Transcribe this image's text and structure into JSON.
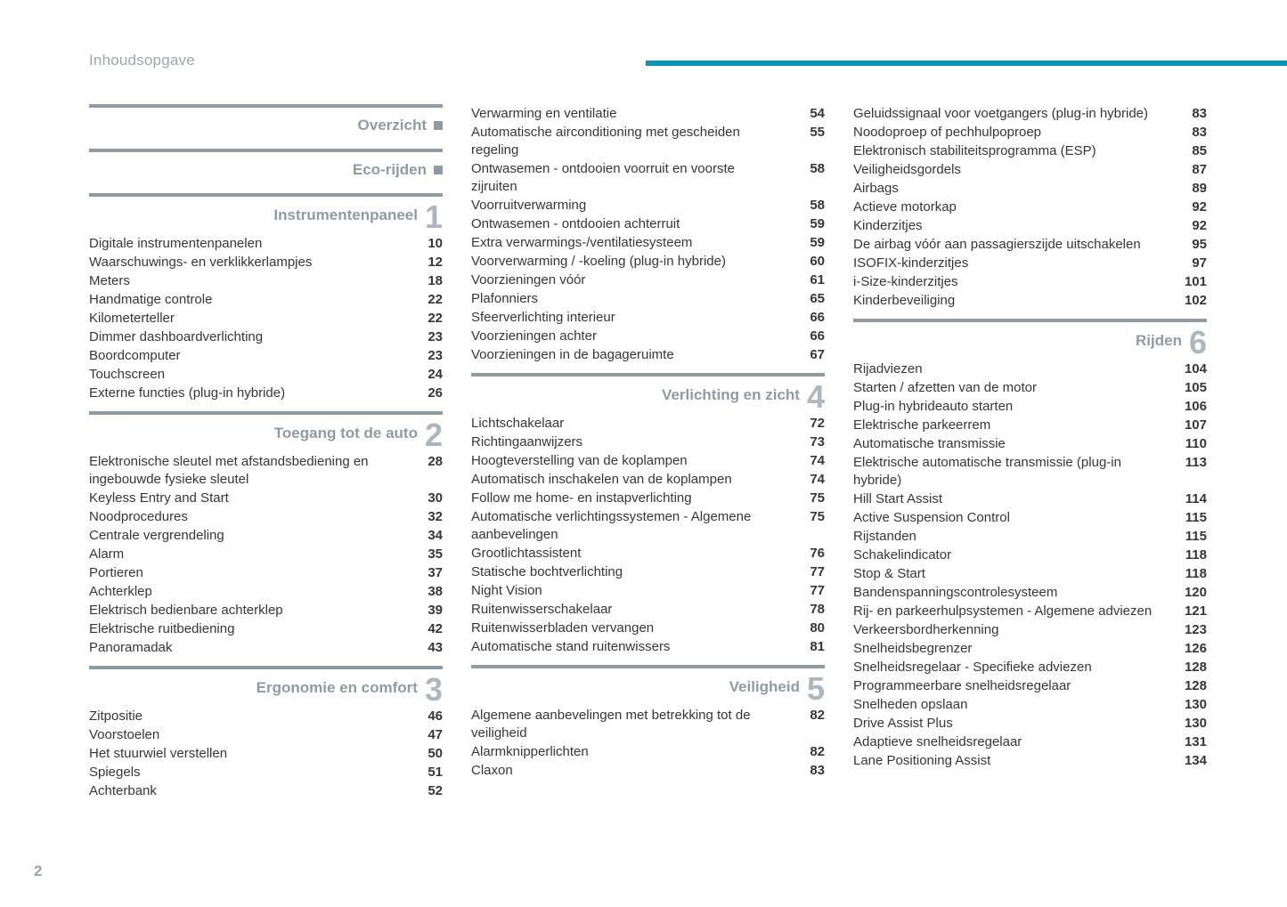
{
  "page": {
    "title": "Inhoudsopgave",
    "number": "2",
    "accent_color": "#0b96b8",
    "rule_color": "#8f9aa3",
    "text_color": "#363636",
    "muted_color": "#9fa5aa",
    "numeral_color": "#aeb6bd"
  },
  "columns": [
    [
      {
        "title": "Overzicht",
        "numeral": "",
        "marker": true,
        "items": []
      },
      {
        "title": "Eco-rijden",
        "numeral": "",
        "marker": true,
        "items": []
      },
      {
        "title": "Instrumentenpaneel",
        "numeral": "1",
        "items": [
          {
            "label": "Digitale instrumentenpanelen",
            "page": "10"
          },
          {
            "label": "Waarschuwings- en verklikkerlampjes",
            "page": "12"
          },
          {
            "label": "Meters",
            "page": "18"
          },
          {
            "label": "Handmatige controle",
            "page": "22"
          },
          {
            "label": "Kilometerteller",
            "page": "22"
          },
          {
            "label": "Dimmer dashboardverlichting",
            "page": "23"
          },
          {
            "label": "Boordcomputer",
            "page": "23"
          },
          {
            "label": "Touchscreen",
            "page": "24"
          },
          {
            "label": "Externe functies (plug-in hybride)",
            "page": "26"
          }
        ]
      },
      {
        "title": "Toegang tot de auto",
        "numeral": "2",
        "items": [
          {
            "label": "Elektronische sleutel met afstandsbediening en ingebouwde fysieke sleutel",
            "page": "28"
          },
          {
            "label": "Keyless Entry and Start",
            "page": "30"
          },
          {
            "label": "Noodprocedures",
            "page": "32"
          },
          {
            "label": "Centrale vergrendeling",
            "page": "34"
          },
          {
            "label": "Alarm",
            "page": "35"
          },
          {
            "label": "Portieren",
            "page": "37"
          },
          {
            "label": "Achterklep",
            "page": "38"
          },
          {
            "label": "Elektrisch bedienbare achterklep",
            "page": "39"
          },
          {
            "label": "Elektrische ruitbediening",
            "page": "42"
          },
          {
            "label": "Panoramadak",
            "page": "43"
          }
        ]
      },
      {
        "title": "Ergonomie en comfort",
        "numeral": "3",
        "items": [
          {
            "label": "Zitpositie",
            "page": "46"
          },
          {
            "label": "Voorstoelen",
            "page": "47"
          },
          {
            "label": "Het stuurwiel verstellen",
            "page": "50"
          },
          {
            "label": "Spiegels",
            "page": "51"
          },
          {
            "label": "Achterbank",
            "page": "52"
          }
        ]
      }
    ],
    [
      {
        "continuation": true,
        "items": [
          {
            "label": "Verwarming en ventilatie",
            "page": "54"
          },
          {
            "label": "Automatische airconditioning met gescheiden regeling",
            "page": "55"
          },
          {
            "label": "Ontwasemen - ontdooien voorruit en voorste zijruiten",
            "page": "58"
          },
          {
            "label": "Voorruitverwarming",
            "page": "58"
          },
          {
            "label": "Ontwasemen - ontdooien achterruit",
            "page": "59"
          },
          {
            "label": "Extra verwarmings-/ventilatiesysteem",
            "page": "59"
          },
          {
            "label": "Voorverwarming / -koeling (plug-in hybride)",
            "page": "60"
          },
          {
            "label": "Voorzieningen vóór",
            "page": "61"
          },
          {
            "label": "Plafonniers",
            "page": "65"
          },
          {
            "label": "Sfeerverlichting interieur",
            "page": "66"
          },
          {
            "label": "Voorzieningen achter",
            "page": "66"
          },
          {
            "label": "Voorzieningen in de bagageruimte",
            "page": "67"
          }
        ]
      },
      {
        "title": "Verlichting en zicht",
        "numeral": "4",
        "items": [
          {
            "label": "Lichtschakelaar",
            "page": "72"
          },
          {
            "label": "Richtingaanwijzers",
            "page": "73"
          },
          {
            "label": "Hoogteverstelling van de koplampen",
            "page": "74"
          },
          {
            "label": "Automatisch inschakelen van de koplampen",
            "page": "74"
          },
          {
            "label": "Follow me home- en instapverlichting",
            "page": "75"
          },
          {
            "label": "Automatische verlichtingssystemen - Algemene aanbevelingen",
            "page": "75"
          },
          {
            "label": "Grootlichtassistent",
            "page": "76"
          },
          {
            "label": "Statische bochtverlichting",
            "page": "77"
          },
          {
            "label": "Night Vision",
            "page": "77"
          },
          {
            "label": "Ruitenwisserschakelaar",
            "page": "78"
          },
          {
            "label": "Ruitenwisserbladen vervangen",
            "page": "80"
          },
          {
            "label": "Automatische stand ruitenwissers",
            "page": "81"
          }
        ]
      },
      {
        "title": "Veiligheid",
        "numeral": "5",
        "items": [
          {
            "label": "Algemene aanbevelingen met betrekking tot de veiligheid",
            "page": "82"
          },
          {
            "label": "Alarmknipperlichten",
            "page": "82"
          },
          {
            "label": "Claxon",
            "page": "83"
          }
        ]
      }
    ],
    [
      {
        "continuation": true,
        "items": [
          {
            "label": "Geluidssignaal voor voetgangers (plug-in hybride)",
            "page": "83"
          },
          {
            "label": "Noodoproep of pechhulpoproep",
            "page": "83"
          },
          {
            "label": "Elektronisch stabiliteitsprogramma (ESP)",
            "page": "85"
          },
          {
            "label": "Veiligheidsgordels",
            "page": "87"
          },
          {
            "label": "Airbags",
            "page": "89"
          },
          {
            "label": "Actieve motorkap",
            "page": "92"
          },
          {
            "label": "Kinderzitjes",
            "page": "92"
          },
          {
            "label": "De airbag vóór aan passagierszijde uitschakelen",
            "page": "95"
          },
          {
            "label": "ISOFIX-kinderzitjes",
            "page": "97"
          },
          {
            "label": "i-Size-kinderzitjes",
            "page": "101"
          },
          {
            "label": "Kinderbeveiliging",
            "page": "102"
          }
        ]
      },
      {
        "title": "Rijden",
        "numeral": "6",
        "items": [
          {
            "label": "Rijadviezen",
            "page": "104"
          },
          {
            "label": "Starten / afzetten van de motor",
            "page": "105"
          },
          {
            "label": "Plug-in hybrideauto starten",
            "page": "106"
          },
          {
            "label": "Elektrische parkeerrem",
            "page": "107"
          },
          {
            "label": "Automatische transmissie",
            "page": "110"
          },
          {
            "label": "Elektrische automatische transmissie (plug-in hybride)",
            "page": "113"
          },
          {
            "label": "Hill Start Assist",
            "page": "114"
          },
          {
            "label": "Active Suspension Control",
            "page": "115"
          },
          {
            "label": "Rijstanden",
            "page": "115"
          },
          {
            "label": "Schakelindicator",
            "page": "118"
          },
          {
            "label": "Stop & Start",
            "page": "118"
          },
          {
            "label": "Bandenspanningscontrolesysteem",
            "page": "120"
          },
          {
            "label": "Rij- en parkeerhulpsystemen - Algemene adviezen",
            "page": "121"
          },
          {
            "label": "Verkeersbordherkenning",
            "page": "123"
          },
          {
            "label": "Snelheidsbegrenzer",
            "page": "126"
          },
          {
            "label": "Snelheidsregelaar - Specifieke adviezen",
            "page": "128"
          },
          {
            "label": "Programmeerbare snelheidsregelaar",
            "page": "128"
          },
          {
            "label": "Snelheden opslaan",
            "page": "130"
          },
          {
            "label": "Drive Assist Plus",
            "page": "130"
          },
          {
            "label": "Adaptieve snelheidsregelaar",
            "page": "131"
          },
          {
            "label": "Lane Positioning Assist",
            "page": "134"
          }
        ]
      }
    ]
  ]
}
